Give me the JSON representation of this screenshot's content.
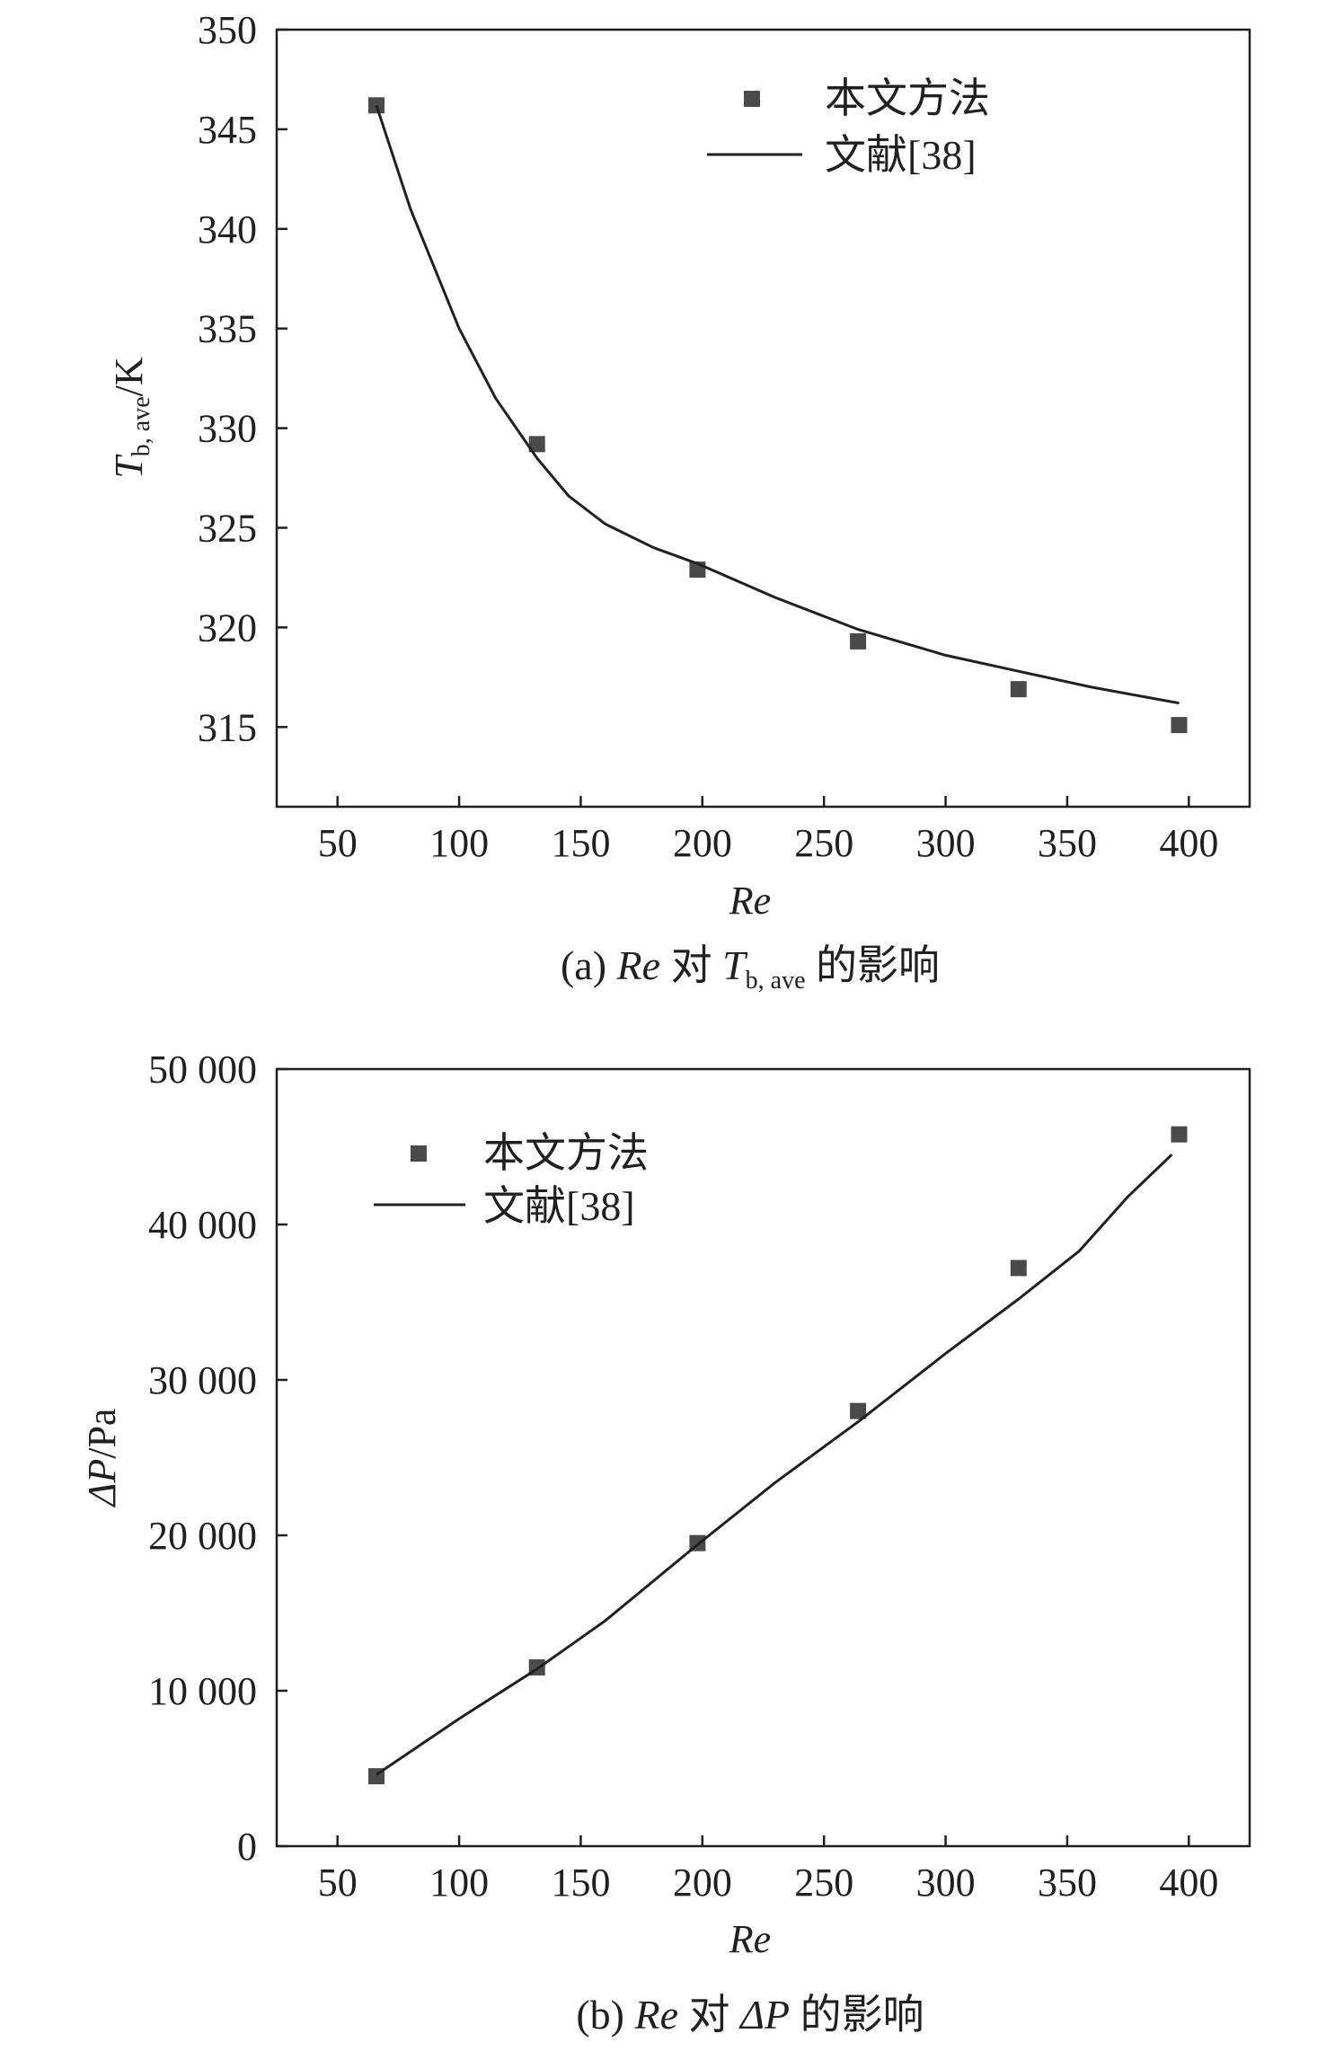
{
  "chart_data": [
    {
      "type": "scatter",
      "caption": {
        "prefix": "(a) ",
        "var": "Re",
        "mid": " 对 ",
        "target": "T",
        "target_sub": "b, ave",
        "suffix": " 的影响"
      },
      "xlabel": "Re",
      "ylabel": {
        "main": "T",
        "sub": "b, ave",
        "unit": "/K"
      },
      "xlim": [
        25,
        425
      ],
      "ylim": [
        311,
        350
      ],
      "xticks": [
        50,
        100,
        150,
        200,
        250,
        300,
        350,
        400
      ],
      "xtick_labels": [
        "50",
        "100",
        "150",
        "200",
        "250",
        "300",
        "350",
        "400"
      ],
      "yticks": [
        315,
        320,
        325,
        330,
        335,
        340,
        345,
        350
      ],
      "ytick_labels": [
        "315",
        "320",
        "325",
        "330",
        "335",
        "340",
        "345",
        "350"
      ],
      "grid": false,
      "legend": "top-right",
      "series": [
        {
          "name": "本文方法",
          "kind": "markers",
          "color": "#4a4a4a",
          "x": [
            66,
            132,
            198,
            264,
            330,
            396
          ],
          "y": [
            346.2,
            329.2,
            322.9,
            319.3,
            316.9,
            315.1
          ]
        },
        {
          "name": "文献[38]",
          "kind": "line",
          "color": "#231f20",
          "x": [
            66,
            80,
            100,
            115,
            132,
            145,
            160,
            180,
            198,
            230,
            264,
            300,
            330,
            360,
            396
          ],
          "y": [
            346.2,
            341.0,
            335.0,
            331.5,
            328.5,
            326.6,
            325.2,
            324.0,
            323.2,
            321.5,
            319.9,
            318.6,
            317.8,
            317.0,
            316.2
          ]
        }
      ]
    },
    {
      "type": "scatter",
      "caption": {
        "prefix": "(b) ",
        "var": "Re",
        "mid": " 对 ",
        "target": "ΔP",
        "suffix": " 的影响"
      },
      "xlabel": "Re",
      "ylabel": {
        "main": "ΔP",
        "unit": "/Pa"
      },
      "xlim": [
        25,
        425
      ],
      "ylim": [
        0,
        50000
      ],
      "xticks": [
        50,
        100,
        150,
        200,
        250,
        300,
        350,
        400
      ],
      "xtick_labels": [
        "50",
        "100",
        "150",
        "200",
        "250",
        "300",
        "350",
        "400"
      ],
      "yticks": [
        0,
        10000,
        20000,
        30000,
        40000,
        50000
      ],
      "ytick_labels": [
        "0",
        "10 000",
        "20 000",
        "30 000",
        "40 000",
        "50 000"
      ],
      "grid": false,
      "legend": "top-left",
      "series": [
        {
          "name": "本文方法",
          "kind": "markers",
          "color": "#4a4a4a",
          "x": [
            66,
            132,
            198,
            264,
            330,
            396
          ],
          "y": [
            4500,
            11500,
            19500,
            28000,
            37200,
            45800
          ]
        },
        {
          "name": "文献[38]",
          "kind": "line",
          "color": "#231f20",
          "x": [
            66,
            100,
            132,
            160,
            198,
            230,
            264,
            300,
            330,
            355,
            375,
            393
          ],
          "y": [
            4600,
            8200,
            11400,
            14500,
            19400,
            23400,
            27300,
            31700,
            35200,
            38300,
            41800,
            44500
          ]
        }
      ]
    }
  ]
}
